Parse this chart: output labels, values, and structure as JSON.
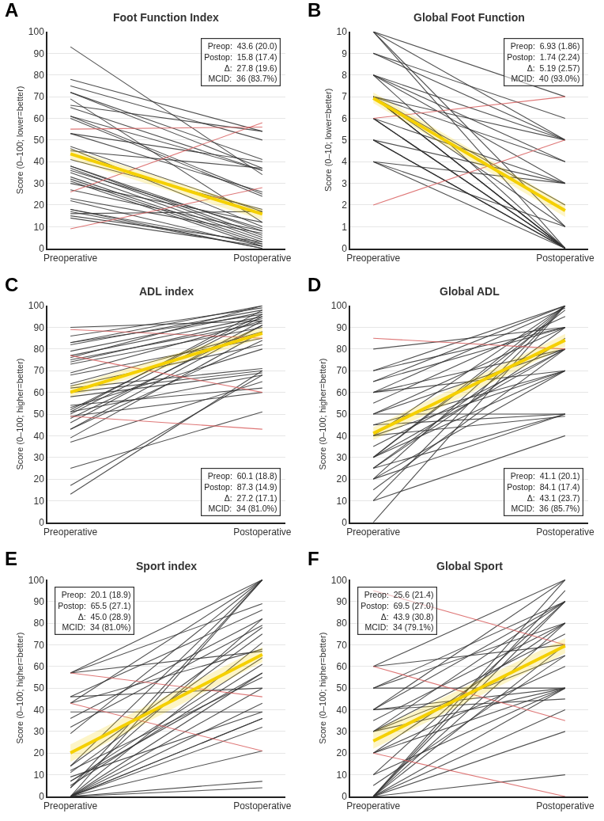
{
  "chart_data": [
    {
      "type": "line",
      "title": "Foot Function Index",
      "ylabel": "Score (0–100; lower=better)",
      "categories": [
        "Preoperative",
        "Postoperative"
      ],
      "ylim": [
        0,
        100
      ],
      "yticks": [
        0,
        10,
        20,
        30,
        40,
        50,
        60,
        70,
        80,
        90,
        100
      ],
      "grid": "y",
      "annotations": [
        "A",
        "Preop:  43.6 (20.0)",
        "Postop:  15.8 (17.4)",
        "Δ:  27.8 (19.6)",
        "MCID:  36 (83.7%)"
      ],
      "series": [
        {
          "color": "#333333",
          "values": [
            93,
            34
          ]
        },
        {
          "color": "#333333",
          "values": [
            78,
            54
          ]
        },
        {
          "color": "#333333",
          "values": [
            75,
            50
          ]
        },
        {
          "color": "#333333",
          "values": [
            72,
            41
          ]
        },
        {
          "color": "#333333",
          "values": [
            72,
            37
          ]
        },
        {
          "color": "#333333",
          "values": [
            69,
            12
          ]
        },
        {
          "color": "#333333",
          "values": [
            66,
            54
          ]
        },
        {
          "color": "#333333",
          "values": [
            65,
            36
          ]
        },
        {
          "color": "#333333",
          "values": [
            61,
            36
          ]
        },
        {
          "color": "#333333",
          "values": [
            61,
            25
          ]
        },
        {
          "color": "#333333",
          "values": [
            60,
            24
          ]
        },
        {
          "color": "#333333",
          "values": [
            53,
            26
          ]
        },
        {
          "color": "#333333",
          "values": [
            53,
            40
          ]
        },
        {
          "color": "#333333",
          "values": [
            47,
            17
          ]
        },
        {
          "color": "#333333",
          "values": [
            46,
            10
          ]
        },
        {
          "color": "#333333",
          "values": [
            45,
            37
          ]
        },
        {
          "color": "#333333",
          "values": [
            41,
            18
          ]
        },
        {
          "color": "#333333",
          "values": [
            38,
            8
          ]
        },
        {
          "color": "#333333",
          "values": [
            38,
            6
          ]
        },
        {
          "color": "#333333",
          "values": [
            37,
            5
          ]
        },
        {
          "color": "#333333",
          "values": [
            36,
            9
          ]
        },
        {
          "color": "#333333",
          "values": [
            35,
            4
          ]
        },
        {
          "color": "#333333",
          "values": [
            33,
            3
          ]
        },
        {
          "color": "#333333",
          "values": [
            32,
            2
          ]
        },
        {
          "color": "#333333",
          "values": [
            31,
            1
          ]
        },
        {
          "color": "#333333",
          "values": [
            30,
            12
          ]
        },
        {
          "color": "#333333",
          "values": [
            27,
            8
          ]
        },
        {
          "color": "#333333",
          "values": [
            23,
            7
          ]
        },
        {
          "color": "#333333",
          "values": [
            22,
            1
          ]
        },
        {
          "color": "#333333",
          "values": [
            18,
            0
          ]
        },
        {
          "color": "#333333",
          "values": [
            18,
            2
          ]
        },
        {
          "color": "#333333",
          "values": [
            17,
            0
          ]
        },
        {
          "color": "#333333",
          "values": [
            16,
            17
          ]
        },
        {
          "color": "#333333",
          "values": [
            15,
            3
          ]
        },
        {
          "color": "#333333",
          "values": [
            14,
            1
          ]
        },
        {
          "color": "#d96060",
          "values": [
            55,
            56
          ]
        },
        {
          "color": "#d96060",
          "values": [
            26,
            58
          ]
        },
        {
          "color": "#d96060",
          "values": [
            9,
            28
          ]
        },
        {
          "color": "#f5d000",
          "values": [
            43.6,
            15.8
          ],
          "lower": [
            41,
            13
          ],
          "upper": [
            46,
            18
          ]
        }
      ]
    },
    {
      "type": "line",
      "title": "Global Foot Function",
      "ylabel": "Score (0–10; lower=better)",
      "categories": [
        "Preoperative",
        "Postoperative"
      ],
      "ylim": [
        0,
        10
      ],
      "yticks": [
        0,
        1,
        2,
        3,
        4,
        5,
        6,
        7,
        8,
        9,
        10
      ],
      "grid": "y",
      "annotations": [
        "B",
        "Preop:  6.93 (1.86)",
        "Postop:  1.74 (2.24)",
        "Δ:  5.19 (2.57)",
        "MCID:  40 (93.0%)"
      ],
      "series": [
        {
          "color": "#333333",
          "values": [
            10,
            7
          ]
        },
        {
          "color": "#333333",
          "values": [
            10,
            5
          ]
        },
        {
          "color": "#333333",
          "values": [
            10,
            0
          ]
        },
        {
          "color": "#333333",
          "values": [
            10,
            1
          ]
        },
        {
          "color": "#333333",
          "values": [
            9,
            6
          ]
        },
        {
          "color": "#333333",
          "values": [
            9,
            5
          ]
        },
        {
          "color": "#333333",
          "values": [
            8,
            5
          ]
        },
        {
          "color": "#333333",
          "values": [
            8,
            3
          ]
        },
        {
          "color": "#333333",
          "values": [
            8,
            4
          ]
        },
        {
          "color": "#333333",
          "values": [
            8,
            0
          ]
        },
        {
          "color": "#333333",
          "values": [
            7,
            4
          ]
        },
        {
          "color": "#333333",
          "values": [
            7,
            0
          ]
        },
        {
          "color": "#333333",
          "values": [
            7,
            0
          ]
        },
        {
          "color": "#333333",
          "values": [
            7,
            0
          ]
        },
        {
          "color": "#333333",
          "values": [
            7,
            0
          ]
        },
        {
          "color": "#333333",
          "values": [
            7,
            1
          ]
        },
        {
          "color": "#333333",
          "values": [
            7,
            2
          ]
        },
        {
          "color": "#333333",
          "values": [
            7,
            5
          ]
        },
        {
          "color": "#333333",
          "values": [
            6,
            3
          ]
        },
        {
          "color": "#333333",
          "values": [
            6,
            0
          ]
        },
        {
          "color": "#333333",
          "values": [
            6,
            0
          ]
        },
        {
          "color": "#333333",
          "values": [
            6,
            0
          ]
        },
        {
          "color": "#333333",
          "values": [
            5,
            0
          ]
        },
        {
          "color": "#333333",
          "values": [
            5,
            0
          ]
        },
        {
          "color": "#333333",
          "values": [
            5,
            0
          ]
        },
        {
          "color": "#333333",
          "values": [
            5,
            3
          ]
        },
        {
          "color": "#333333",
          "values": [
            4,
            3
          ]
        },
        {
          "color": "#333333",
          "values": [
            4,
            1
          ]
        },
        {
          "color": "#333333",
          "values": [
            4,
            0
          ]
        },
        {
          "color": "#d96060",
          "values": [
            6,
            7
          ]
        },
        {
          "color": "#d96060",
          "values": [
            2,
            5
          ]
        },
        {
          "color": "#f5d000",
          "values": [
            6.93,
            1.74
          ],
          "lower": [
            6.7,
            1.45
          ],
          "upper": [
            7.2,
            2.05
          ]
        }
      ]
    },
    {
      "type": "line",
      "title": "ADL index",
      "ylabel": "Score (0–100; higher=better)",
      "categories": [
        "Preoperative",
        "Postoperative"
      ],
      "ylim": [
        0,
        100
      ],
      "yticks": [
        0,
        10,
        20,
        30,
        40,
        50,
        60,
        70,
        80,
        90,
        100
      ],
      "grid": "y",
      "annotations": [
        "C",
        "Preop:  60.1 (18.8)",
        "Postop:  87.3 (14.9)",
        "Δ:  27.2 (17.1)",
        "MCID:  34 (81.0%)"
      ],
      "series": [
        {
          "color": "#333333",
          "values": [
            90,
            93
          ]
        },
        {
          "color": "#333333",
          "values": [
            86,
            99
          ]
        },
        {
          "color": "#333333",
          "values": [
            83,
            100
          ]
        },
        {
          "color": "#333333",
          "values": [
            83,
            96
          ]
        },
        {
          "color": "#333333",
          "values": [
            82,
            98
          ]
        },
        {
          "color": "#333333",
          "values": [
            79,
            97
          ]
        },
        {
          "color": "#333333",
          "values": [
            77,
            95
          ]
        },
        {
          "color": "#333333",
          "values": [
            76,
            100
          ]
        },
        {
          "color": "#333333",
          "values": [
            75,
            92
          ]
        },
        {
          "color": "#333333",
          "values": [
            74,
            94
          ]
        },
        {
          "color": "#333333",
          "values": [
            73,
            90
          ]
        },
        {
          "color": "#333333",
          "values": [
            69,
            93
          ]
        },
        {
          "color": "#333333",
          "values": [
            68,
            85
          ]
        },
        {
          "color": "#333333",
          "values": [
            64,
            88
          ]
        },
        {
          "color": "#333333",
          "values": [
            63,
            82
          ]
        },
        {
          "color": "#333333",
          "values": [
            62,
            71
          ]
        },
        {
          "color": "#333333",
          "values": [
            60,
            70
          ]
        },
        {
          "color": "#333333",
          "values": [
            58,
            69
          ]
        },
        {
          "color": "#333333",
          "values": [
            54,
            62
          ]
        },
        {
          "color": "#333333",
          "values": [
            53,
            80
          ]
        },
        {
          "color": "#333333",
          "values": [
            52,
            96
          ]
        },
        {
          "color": "#333333",
          "values": [
            51,
            98
          ]
        },
        {
          "color": "#333333",
          "values": [
            51,
            68
          ]
        },
        {
          "color": "#333333",
          "values": [
            50,
            95
          ]
        },
        {
          "color": "#333333",
          "values": [
            49,
            60
          ]
        },
        {
          "color": "#333333",
          "values": [
            48,
            91
          ]
        },
        {
          "color": "#333333",
          "values": [
            46,
            93
          ]
        },
        {
          "color": "#333333",
          "values": [
            43,
            91
          ]
        },
        {
          "color": "#333333",
          "values": [
            43,
            84
          ]
        },
        {
          "color": "#333333",
          "values": [
            39,
            88
          ]
        },
        {
          "color": "#333333",
          "values": [
            37,
            65
          ]
        },
        {
          "color": "#333333",
          "values": [
            25,
            51
          ]
        },
        {
          "color": "#333333",
          "values": [
            17,
            68
          ]
        },
        {
          "color": "#333333",
          "values": [
            13,
            70
          ]
        },
        {
          "color": "#d96060",
          "values": [
            89,
            85
          ]
        },
        {
          "color": "#d96060",
          "values": [
            77,
            60
          ]
        },
        {
          "color": "#d96060",
          "values": [
            49,
            43
          ]
        },
        {
          "color": "#f5d000",
          "values": [
            60.1,
            87.3
          ],
          "lower": [
            58,
            85
          ],
          "upper": [
            63,
            90
          ]
        }
      ]
    },
    {
      "type": "line",
      "title": "Global ADL",
      "ylabel": "Score (0–100; higher=better)",
      "categories": [
        "Preoperative",
        "Postoperative"
      ],
      "ylim": [
        0,
        100
      ],
      "yticks": [
        0,
        10,
        20,
        30,
        40,
        50,
        60,
        70,
        80,
        90,
        100
      ],
      "grid": "y",
      "annotations": [
        "D",
        "Preop:  41.1 (20.1)",
        "Postop:  84.1 (17.4)",
        "Δ:  43.1 (23.7)",
        "MCID:  36 (85.7%)"
      ],
      "series": [
        {
          "color": "#333333",
          "values": [
            80,
            90
          ]
        },
        {
          "color": "#333333",
          "values": [
            70,
            100
          ]
        },
        {
          "color": "#333333",
          "values": [
            70,
            90
          ]
        },
        {
          "color": "#333333",
          "values": [
            65,
            100
          ]
        },
        {
          "color": "#333333",
          "values": [
            65,
            90
          ]
        },
        {
          "color": "#333333",
          "values": [
            60,
            99
          ]
        },
        {
          "color": "#333333",
          "values": [
            60,
            80
          ]
        },
        {
          "color": "#333333",
          "values": [
            60,
            70
          ]
        },
        {
          "color": "#333333",
          "values": [
            55,
            95
          ]
        },
        {
          "color": "#333333",
          "values": [
            50,
            50
          ]
        },
        {
          "color": "#333333",
          "values": [
            50,
            90
          ]
        },
        {
          "color": "#333333",
          "values": [
            50,
            80
          ]
        },
        {
          "color": "#333333",
          "values": [
            45,
            50
          ]
        },
        {
          "color": "#333333",
          "values": [
            45,
            70
          ]
        },
        {
          "color": "#333333",
          "values": [
            40,
            100
          ]
        },
        {
          "color": "#333333",
          "values": [
            40,
            70
          ]
        },
        {
          "color": "#333333",
          "values": [
            40,
            49
          ]
        },
        {
          "color": "#333333",
          "values": [
            35,
            80
          ]
        },
        {
          "color": "#333333",
          "values": [
            30,
            100
          ]
        },
        {
          "color": "#333333",
          "values": [
            30,
            98
          ]
        },
        {
          "color": "#333333",
          "values": [
            30,
            80
          ]
        },
        {
          "color": "#333333",
          "values": [
            30,
            70
          ]
        },
        {
          "color": "#333333",
          "values": [
            25,
            90
          ]
        },
        {
          "color": "#333333",
          "values": [
            25,
            85
          ]
        },
        {
          "color": "#333333",
          "values": [
            25,
            50
          ]
        },
        {
          "color": "#333333",
          "values": [
            20,
            50
          ]
        },
        {
          "color": "#333333",
          "values": [
            20,
            70
          ]
        },
        {
          "color": "#333333",
          "values": [
            20,
            100
          ]
        },
        {
          "color": "#333333",
          "values": [
            15,
            80
          ]
        },
        {
          "color": "#333333",
          "values": [
            10,
            40
          ]
        },
        {
          "color": "#333333",
          "values": [
            10,
            100
          ]
        },
        {
          "color": "#333333",
          "values": [
            0,
            100
          ]
        },
        {
          "color": "#d96060",
          "values": [
            85,
            80
          ]
        },
        {
          "color": "#f5d000",
          "values": [
            41.1,
            84.1
          ],
          "lower": [
            38,
            81
          ],
          "upper": [
            44,
            87
          ]
        }
      ]
    },
    {
      "type": "line",
      "title": "Sport index",
      "ylabel": "Score (0–100; higher=better)",
      "categories": [
        "Preoperative",
        "Postoperative"
      ],
      "ylim": [
        0,
        100
      ],
      "yticks": [
        0,
        10,
        20,
        30,
        40,
        50,
        60,
        70,
        80,
        90,
        100
      ],
      "grid": "y",
      "annotations": [
        "E",
        "Preop:  20.1 (18.9)",
        "Postop:  65.5 (27.1)",
        "Δ:  45.0 (28.9)",
        "MCID:  34 (81.0%)"
      ],
      "series": [
        {
          "color": "#333333",
          "values": [
            57,
            100
          ]
        },
        {
          "color": "#333333",
          "values": [
            57,
            89
          ]
        },
        {
          "color": "#333333",
          "values": [
            57,
            67
          ]
        },
        {
          "color": "#333333",
          "values": [
            46,
            50
          ]
        },
        {
          "color": "#333333",
          "values": [
            46,
            86
          ]
        },
        {
          "color": "#333333",
          "values": [
            43,
            100
          ]
        },
        {
          "color": "#333333",
          "values": [
            43,
            68
          ]
        },
        {
          "color": "#333333",
          "values": [
            39,
            39
          ]
        },
        {
          "color": "#333333",
          "values": [
            36,
            82
          ]
        },
        {
          "color": "#333333",
          "values": [
            32,
            79
          ]
        },
        {
          "color": "#333333",
          "values": [
            29,
            100
          ]
        },
        {
          "color": "#333333",
          "values": [
            14,
            100
          ]
        },
        {
          "color": "#333333",
          "values": [
            14,
            78
          ]
        },
        {
          "color": "#333333",
          "values": [
            12,
            55
          ]
        },
        {
          "color": "#333333",
          "values": [
            11,
            75
          ]
        },
        {
          "color": "#333333",
          "values": [
            9,
            39
          ]
        },
        {
          "color": "#333333",
          "values": [
            7,
            64
          ]
        },
        {
          "color": "#333333",
          "values": [
            7,
            57
          ]
        },
        {
          "color": "#333333",
          "values": [
            5,
            61
          ]
        },
        {
          "color": "#333333",
          "values": [
            4,
            100
          ]
        },
        {
          "color": "#333333",
          "values": [
            4,
            82
          ]
        },
        {
          "color": "#333333",
          "values": [
            0,
            100
          ]
        },
        {
          "color": "#333333",
          "values": [
            0,
            71
          ]
        },
        {
          "color": "#333333",
          "values": [
            0,
            57
          ]
        },
        {
          "color": "#333333",
          "values": [
            0,
            50
          ]
        },
        {
          "color": "#333333",
          "values": [
            0,
            43
          ]
        },
        {
          "color": "#333333",
          "values": [
            0,
            36
          ]
        },
        {
          "color": "#333333",
          "values": [
            0,
            36
          ]
        },
        {
          "color": "#333333",
          "values": [
            0,
            32
          ]
        },
        {
          "color": "#333333",
          "values": [
            0,
            21
          ]
        },
        {
          "color": "#333333",
          "values": [
            0,
            7
          ]
        },
        {
          "color": "#333333",
          "values": [
            0,
            4
          ]
        },
        {
          "color": "#d96060",
          "values": [
            57,
            46
          ]
        },
        {
          "color": "#d96060",
          "values": [
            43,
            21
          ]
        },
        {
          "color": "#f5d000",
          "values": [
            20.1,
            65.5
          ],
          "lower": [
            16,
            62
          ],
          "upper": [
            24,
            69
          ]
        }
      ]
    },
    {
      "type": "line",
      "title": "Global Sport",
      "ylabel": "Score (0–100; higher=better)",
      "categories": [
        "Preoperative",
        "Postoperative"
      ],
      "ylim": [
        0,
        100
      ],
      "yticks": [
        0,
        10,
        20,
        30,
        40,
        50,
        60,
        70,
        80,
        90,
        100
      ],
      "grid": "y",
      "annotations": [
        "F",
        "Preop:  25.6 (21.4)",
        "Postop:  69.5 (27.0)",
        "Δ:  43.9 (30.8)",
        "MCID:  34 (79.1%)"
      ],
      "series": [
        {
          "color": "#333333",
          "values": [
            60,
            100
          ]
        },
        {
          "color": "#333333",
          "values": [
            60,
            70
          ]
        },
        {
          "color": "#333333",
          "values": [
            50,
            90
          ]
        },
        {
          "color": "#333333",
          "values": [
            50,
            50
          ]
        },
        {
          "color": "#333333",
          "values": [
            50,
            80
          ]
        },
        {
          "color": "#333333",
          "values": [
            40,
            100
          ]
        },
        {
          "color": "#333333",
          "values": [
            40,
            90
          ]
        },
        {
          "color": "#333333",
          "values": [
            40,
            50
          ]
        },
        {
          "color": "#333333",
          "values": [
            40,
            45
          ]
        },
        {
          "color": "#333333",
          "values": [
            35,
            80
          ]
        },
        {
          "color": "#333333",
          "values": [
            30,
            90
          ]
        },
        {
          "color": "#333333",
          "values": [
            30,
            75
          ]
        },
        {
          "color": "#333333",
          "values": [
            30,
            65
          ]
        },
        {
          "color": "#333333",
          "values": [
            30,
            50
          ]
        },
        {
          "color": "#333333",
          "values": [
            20,
            80
          ]
        },
        {
          "color": "#333333",
          "values": [
            20,
            60
          ]
        },
        {
          "color": "#333333",
          "values": [
            20,
            50
          ]
        },
        {
          "color": "#333333",
          "values": [
            10,
            90
          ]
        },
        {
          "color": "#333333",
          "values": [
            10,
            50
          ]
        },
        {
          "color": "#333333",
          "values": [
            5,
            65
          ]
        },
        {
          "color": "#333333",
          "values": [
            0,
            100
          ]
        },
        {
          "color": "#333333",
          "values": [
            0,
            95
          ]
        },
        {
          "color": "#333333",
          "values": [
            0,
            90
          ]
        },
        {
          "color": "#333333",
          "values": [
            0,
            80
          ]
        },
        {
          "color": "#333333",
          "values": [
            0,
            70
          ]
        },
        {
          "color": "#333333",
          "values": [
            0,
            50
          ]
        },
        {
          "color": "#333333",
          "values": [
            0,
            40
          ]
        },
        {
          "color": "#333333",
          "values": [
            0,
            30
          ]
        },
        {
          "color": "#333333",
          "values": [
            0,
            10
          ]
        },
        {
          "color": "#d96060",
          "values": [
            95,
            70
          ]
        },
        {
          "color": "#d96060",
          "values": [
            60,
            35
          ]
        },
        {
          "color": "#d96060",
          "values": [
            20,
            0
          ]
        },
        {
          "color": "#f5d000",
          "values": [
            25.6,
            69.5
          ],
          "lower": [
            22,
            66
          ],
          "upper": [
            30,
            73
          ]
        }
      ]
    }
  ]
}
